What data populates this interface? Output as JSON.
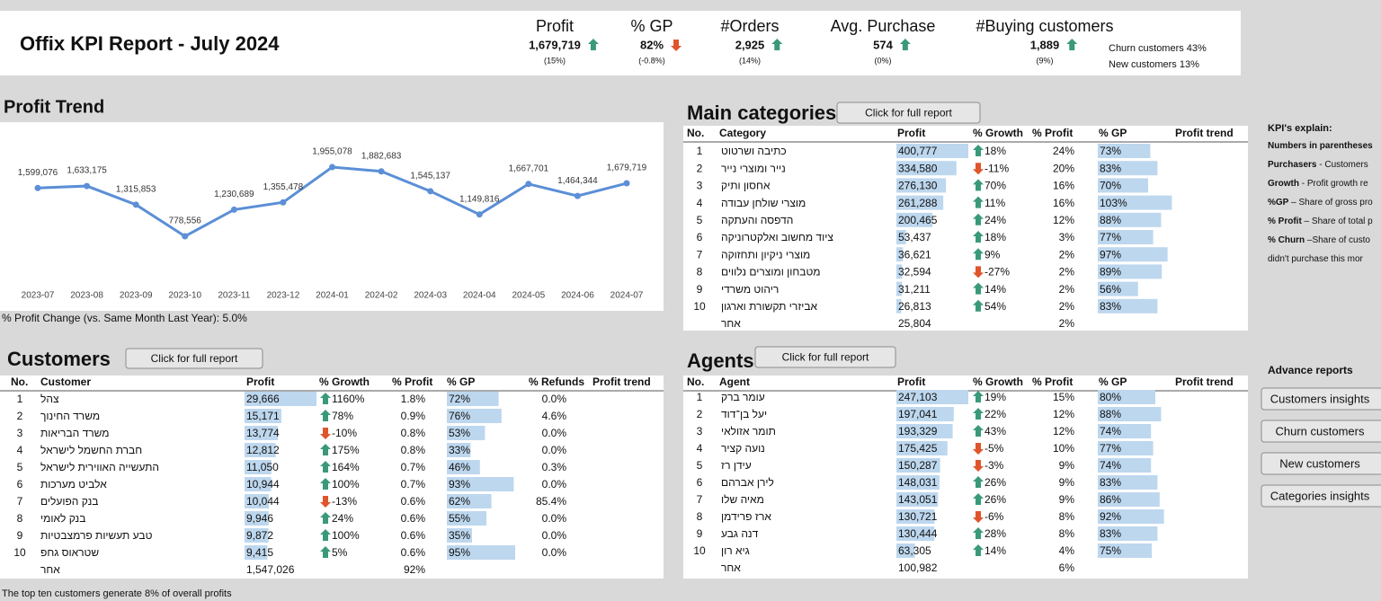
{
  "header": {
    "title": "Offix KPI Report - July 2024",
    "kpis": [
      {
        "label": "Profit",
        "value": "1,679,719",
        "change": "(15%)"
      },
      {
        "label": "% GP",
        "value": "82%",
        "change": "(-0.8%)"
      },
      {
        "label": "#Orders",
        "value": "2,925",
        "change": "(14%)"
      },
      {
        "label": "Avg. Purchase",
        "value": "574",
        "change": "(0%)"
      },
      {
        "label": "#Buying customers",
        "value": "1,889",
        "change": "(9%)"
      }
    ],
    "notes": [
      "Churn customers 43%",
      "New customers 13%"
    ]
  },
  "chart_data": {
    "type": "line",
    "title": "Profit Trend",
    "footnote": "% Profit Change (vs. Same Month Last Year): 5.0%",
    "color": "#5b8fd6",
    "categories": [
      "2023-07",
      "2023-08",
      "2023-09",
      "2023-10",
      "2023-11",
      "2023-12",
      "2024-01",
      "2024-02",
      "2024-03",
      "2024-04",
      "2024-05",
      "2024-06",
      "2024-07"
    ],
    "values": [
      1599076,
      1633175,
      1315853,
      778556,
      1230689,
      1355478,
      1955078,
      1882683,
      1545137,
      1149816,
      1667701,
      1464344,
      1679719
    ],
    "value_labels": [
      "1,599,076",
      "1,633,175",
      "1,315,853",
      "778,556",
      "1,230,689",
      "1,355,478",
      "1,955,078",
      "1,882,683",
      "1,545,137",
      "1,149,816",
      "1,667,701",
      "1,464,344",
      "1,679,719"
    ]
  },
  "main_categories": {
    "title": "Main categories",
    "button": "Click for full report",
    "columns": [
      "No.",
      "Category",
      "Profit",
      "% Growth",
      "% Profit",
      "% GP",
      "Profit trend"
    ],
    "rows": [
      {
        "no": 1,
        "name": "כתיבה ושרטוט",
        "profit": "400,777",
        "growth": "18%",
        "pct_profit": "24%",
        "gp": "73%"
      },
      {
        "no": 2,
        "name": "נייר ומוצרי נייר",
        "profit": "334,580",
        "growth": "-11%",
        "pct_profit": "20%",
        "gp": "83%"
      },
      {
        "no": 3,
        "name": "אחסון ותיק",
        "profit": "276,130",
        "growth": "70%",
        "pct_profit": "16%",
        "gp": "70%"
      },
      {
        "no": 4,
        "name": "מוצרי שולחן עבודה",
        "profit": "261,288",
        "growth": "11%",
        "pct_profit": "16%",
        "gp": "103%"
      },
      {
        "no": 5,
        "name": "הדפסה והעתקה",
        "profit": "200,465",
        "growth": "24%",
        "pct_profit": "12%",
        "gp": "88%"
      },
      {
        "no": 6,
        "name": "ציוד מחשוב ואלקטרוניקה",
        "profit": "53,437",
        "growth": "18%",
        "pct_profit": "3%",
        "gp": "77%"
      },
      {
        "no": 7,
        "name": "מוצרי ניקיון ותחזוקה",
        "profit": "36,621",
        "growth": "9%",
        "pct_profit": "2%",
        "gp": "97%"
      },
      {
        "no": 8,
        "name": "מטבחון ומוצרים נלווים",
        "profit": "32,594",
        "growth": "-27%",
        "pct_profit": "2%",
        "gp": "89%"
      },
      {
        "no": 9,
        "name": "ריהוט משרדי",
        "profit": "31,211",
        "growth": "14%",
        "pct_profit": "2%",
        "gp": "56%"
      },
      {
        "no": 10,
        "name": "אביזרי תקשורת וארגון",
        "profit": "26,813",
        "growth": "54%",
        "pct_profit": "2%",
        "gp": "83%"
      }
    ],
    "other": {
      "name": "אחר",
      "profit": "25,804",
      "pct_profit": "2%"
    }
  },
  "customers": {
    "title": "Customers",
    "button": "Click for full report",
    "columns": [
      "No.",
      "Customer",
      "Profit",
      "% Growth",
      "% Profit",
      "% GP",
      "% Refunds",
      "Profit trend"
    ],
    "rows": [
      {
        "no": 1,
        "name": "צהל",
        "profit": "29,666",
        "growth": "1160%",
        "pct_profit": "1.8%",
        "gp": "72%",
        "refunds": "0.0%"
      },
      {
        "no": 2,
        "name": "משרד החינוך",
        "profit": "15,171",
        "growth": "78%",
        "pct_profit": "0.9%",
        "gp": "76%",
        "refunds": "4.6%"
      },
      {
        "no": 3,
        "name": "משרד הבריאות",
        "profit": "13,774",
        "growth": "-10%",
        "pct_profit": "0.8%",
        "gp": "53%",
        "refunds": "0.0%"
      },
      {
        "no": 4,
        "name": "חברת החשמל לישראל",
        "profit": "12,812",
        "growth": "175%",
        "pct_profit": "0.8%",
        "gp": "33%",
        "refunds": "0.0%"
      },
      {
        "no": 5,
        "name": "התעשייה האווירית לישראל",
        "profit": "11,050",
        "growth": "164%",
        "pct_profit": "0.7%",
        "gp": "46%",
        "refunds": "0.3%"
      },
      {
        "no": 6,
        "name": "אלביט מערכות",
        "profit": "10,944",
        "growth": "100%",
        "pct_profit": "0.7%",
        "gp": "93%",
        "refunds": "0.0%"
      },
      {
        "no": 7,
        "name": "בנק הפועלים",
        "profit": "10,044",
        "growth": "-13%",
        "pct_profit": "0.6%",
        "gp": "62%",
        "refunds": "85.4%"
      },
      {
        "no": 8,
        "name": "בנק לאומי",
        "profit": "9,946",
        "growth": "24%",
        "pct_profit": "0.6%",
        "gp": "55%",
        "refunds": "0.0%"
      },
      {
        "no": 9,
        "name": "טבע תעשיות פרמצבטיות",
        "profit": "9,872",
        "growth": "100%",
        "pct_profit": "0.6%",
        "gp": "35%",
        "refunds": "0.0%"
      },
      {
        "no": 10,
        "name": "שטראוס גחפ",
        "profit": "9,415",
        "growth": "5%",
        "pct_profit": "0.6%",
        "gp": "95%",
        "refunds": "0.0%"
      }
    ],
    "other": {
      "name": "אחר",
      "profit": "1,547,026",
      "pct_profit": "92%"
    },
    "footnote": "The top ten customers generate 8% of overall profits"
  },
  "agents": {
    "title": "Agents",
    "button": "Click for full report",
    "columns": [
      "No.",
      "Agent",
      "Profit",
      "% Growth",
      "% Profit",
      "% GP",
      "Profit trend"
    ],
    "rows": [
      {
        "no": 1,
        "name": "עומר ברק",
        "profit": "247,103",
        "growth": "19%",
        "pct_profit": "15%",
        "gp": "80%"
      },
      {
        "no": 2,
        "name": "יעל בן־דוד",
        "profit": "197,041",
        "growth": "22%",
        "pct_profit": "12%",
        "gp": "88%"
      },
      {
        "no": 3,
        "name": "תומר אזולאי",
        "profit": "193,329",
        "growth": "43%",
        "pct_profit": "12%",
        "gp": "74%"
      },
      {
        "no": 4,
        "name": "נועה קציר",
        "profit": "175,425",
        "growth": "-5%",
        "pct_profit": "10%",
        "gp": "77%"
      },
      {
        "no": 5,
        "name": "עידן רז",
        "profit": "150,287",
        "growth": "-3%",
        "pct_profit": "9%",
        "gp": "74%"
      },
      {
        "no": 6,
        "name": "לירן אברהם",
        "profit": "148,031",
        "growth": "26%",
        "pct_profit": "9%",
        "gp": "83%"
      },
      {
        "no": 7,
        "name": "מאיה שלו",
        "profit": "143,051",
        "growth": "26%",
        "pct_profit": "9%",
        "gp": "86%"
      },
      {
        "no": 8,
        "name": "ארז פרידמן",
        "profit": "130,721",
        "growth": "-6%",
        "pct_profit": "8%",
        "gp": "92%"
      },
      {
        "no": 9,
        "name": "דנה גבע",
        "profit": "130,444",
        "growth": "28%",
        "pct_profit": "8%",
        "gp": "83%"
      },
      {
        "no": 10,
        "name": "גיא רון",
        "profit": "63,305",
        "growth": "14%",
        "pct_profit": "4%",
        "gp": "75%"
      }
    ],
    "other": {
      "name": "אחר",
      "profit": "100,982",
      "pct_profit": "6%"
    }
  },
  "kpi_explain": {
    "title": "KPI's explain:",
    "items": [
      {
        "term": "Numbers in parentheses"
      },
      {
        "term": "Purchasers",
        "text": " - Customers"
      },
      {
        "term": "Growth",
        "text": " - Profit growth re"
      },
      {
        "term": "%GP",
        "text": " – Share of gross pro"
      },
      {
        "term": "% Profit",
        "text": " – Share of total p"
      },
      {
        "term": "% Churn",
        "text": " –Share of custo"
      },
      {
        "text": "didn't purchase this mor"
      }
    ]
  },
  "advance_reports": {
    "title": "Advance reports",
    "buttons": [
      "Customers insights",
      "Churn customers",
      "New customers",
      "Categories insights"
    ]
  }
}
